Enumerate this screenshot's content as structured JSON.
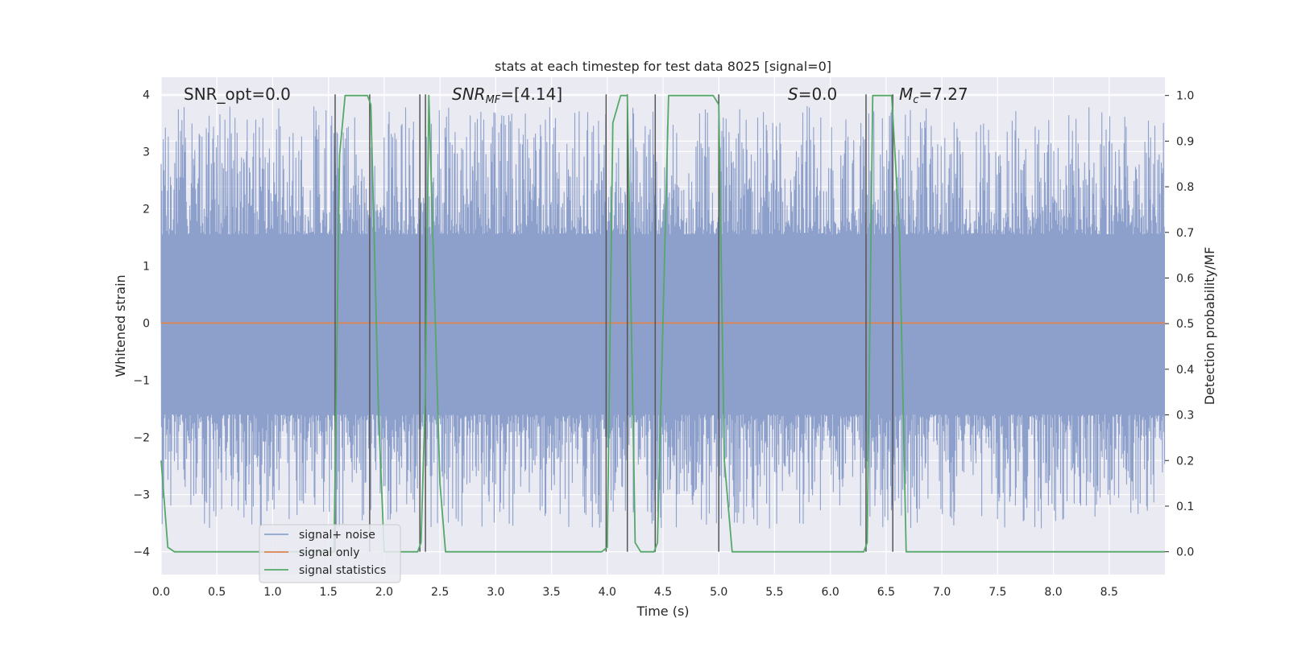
{
  "chart_data": {
    "type": "line",
    "title": "stats at each timestep for test data 8025 [signal=0]",
    "xlabel": "Time (s)",
    "ylabel_left": "Whitened strain",
    "ylabel_right": "Detection probability/MF",
    "xlim": [
      0.0,
      9.0
    ],
    "ylim_left": [
      -4.4,
      4.3
    ],
    "ylim_right": [
      -0.05,
      1.04
    ],
    "grid": true,
    "legend_position": "lower-left",
    "x_ticks": [
      "0.0",
      "0.5",
      "1.0",
      "1.5",
      "2.0",
      "2.5",
      "3.0",
      "3.5",
      "4.0",
      "4.5",
      "5.0",
      "5.5",
      "6.0",
      "6.5",
      "7.0",
      "7.5",
      "8.0",
      "8.5"
    ],
    "y_left_ticks": [
      "4",
      "3",
      "2",
      "1",
      "0",
      "−1",
      "−2",
      "−3",
      "−4"
    ],
    "y_right_ticks": [
      "1.0",
      "0.9",
      "0.8",
      "0.7",
      "0.6",
      "0.5",
      "0.4",
      "0.3",
      "0.2",
      "0.1",
      "0.0"
    ],
    "annotations": {
      "snr_opt": "SNR_opt=0.0",
      "snr_mf_main": "SNR",
      "snr_mf_sub": "MF",
      "snr_mf_val": "=[4.14]",
      "s_main": "S",
      "s_val": "=0.0",
      "mc_main": "M",
      "mc_sub": "c",
      "mc_val": "=7.27"
    },
    "series": [
      {
        "name": "signal+ noise",
        "color": "#8da0cb",
        "axis": "left",
        "band": {
          "x_range": [
            0.0,
            9.0
          ],
          "inner": [
            -1.6,
            1.55
          ],
          "outer": [
            -3.6,
            3.8
          ]
        }
      },
      {
        "name": "signal only",
        "color": "#dd8452",
        "axis": "left",
        "x": [
          0.0,
          9.0
        ],
        "y": [
          0.0,
          0.0
        ]
      },
      {
        "name": "signal statistics",
        "color": "#55a868",
        "axis": "right",
        "x": [
          0.0,
          0.06,
          0.12,
          1.55,
          1.6,
          1.65,
          1.85,
          1.88,
          1.95,
          2.0,
          2.3,
          2.33,
          2.37,
          2.4,
          2.5,
          2.55,
          3.95,
          4.0,
          4.05,
          4.12,
          4.18,
          4.25,
          4.3,
          4.42,
          4.45,
          4.55,
          4.95,
          5.0,
          5.05,
          5.12,
          6.3,
          6.33,
          6.38,
          6.55,
          6.62,
          6.68,
          9.0
        ],
        "y": [
          0.2,
          0.01,
          0.0,
          0.0,
          0.87,
          1.0,
          1.0,
          0.98,
          0.3,
          0.0,
          0.0,
          0.02,
          0.35,
          1.0,
          0.15,
          0.0,
          0.0,
          0.01,
          0.94,
          1.0,
          1.0,
          0.02,
          0.0,
          0.0,
          0.02,
          1.0,
          1.0,
          0.98,
          0.2,
          0.0,
          0.0,
          0.02,
          1.0,
          1.0,
          0.7,
          0.0,
          0.0
        ]
      }
    ],
    "vertical_markers": {
      "color": "#555555",
      "x": [
        1.56,
        1.87,
        2.32,
        2.37,
        3.99,
        4.18,
        4.43,
        5.0,
        6.32,
        6.56
      ],
      "y_top": 4.0,
      "y_bottom": -4.0
    }
  }
}
